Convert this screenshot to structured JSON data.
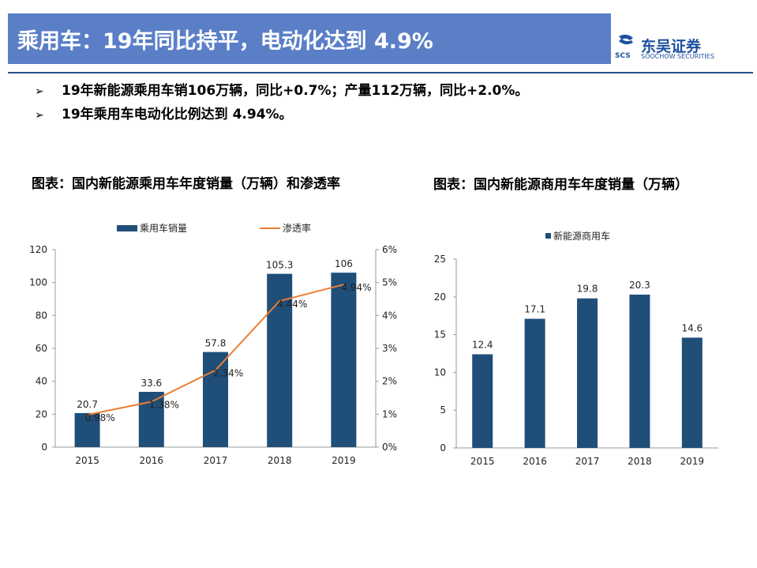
{
  "header": {
    "title": "乘用车：19年同比持平，电动化达到 4.9%",
    "logo_cn": "东吴证券",
    "logo_en": "SOOCHOW SECURITIES",
    "logo_mark_text": "SCS"
  },
  "bullets": [
    {
      "marker": "➢",
      "text": "19年新能源乘用车销106万辆，同比+0.7%；产量112万辆，同比+2.0%。"
    },
    {
      "marker": "➢",
      "text": "19年乘用车电动化比例达到 4.94%。"
    }
  ],
  "colors": {
    "title_bg": "#5b7fc7",
    "bar": "#1f4e79",
    "line": "#ed7d31",
    "rule": "#2b4f8c",
    "brand": "#1e4fa0"
  },
  "chart_titles": [
    "图表：国内新能源乘用车年度销量（万辆）和渗透率",
    "图表：国内新能源商用车年度销量（万辆）"
  ],
  "chart_data": [
    {
      "type": "bar",
      "categories": [
        "2015",
        "2016",
        "2017",
        "2018",
        "2019"
      ],
      "series": [
        {
          "name": "乘用车销量",
          "type": "bar",
          "axis": "left",
          "values": [
            20.7,
            33.6,
            57.8,
            105.3,
            106
          ],
          "labels": [
            "20.7",
            "33.6",
            "57.8",
            "105.3",
            "106"
          ]
        },
        {
          "name": "渗透率",
          "type": "line",
          "axis": "right",
          "values": [
            0.98,
            1.38,
            2.34,
            4.44,
            4.94
          ],
          "labels": [
            "0.98%",
            "1.38%",
            "2.34%",
            "4.44%",
            "4.94%"
          ]
        }
      ],
      "ylim": [
        0,
        120
      ],
      "yticks": [
        "0",
        "20",
        "40",
        "60",
        "80",
        "100",
        "120"
      ],
      "y2lim": [
        0,
        6
      ],
      "y2ticks": [
        "0%",
        "1%",
        "2%",
        "3%",
        "4%",
        "5%",
        "6%"
      ],
      "legend": "top"
    },
    {
      "type": "bar",
      "categories": [
        "2015",
        "2016",
        "2017",
        "2018",
        "2019"
      ],
      "series": [
        {
          "name": "新能源商用车",
          "values": [
            12.4,
            17.1,
            19.8,
            20.3,
            14.6
          ],
          "labels": [
            "12.4",
            "17.1",
            "19.8",
            "20.3",
            "14.6"
          ]
        }
      ],
      "ylim": [
        0,
        25
      ],
      "yticks": [
        "0",
        "5",
        "10",
        "15",
        "20",
        "25"
      ],
      "legend": "top"
    }
  ]
}
